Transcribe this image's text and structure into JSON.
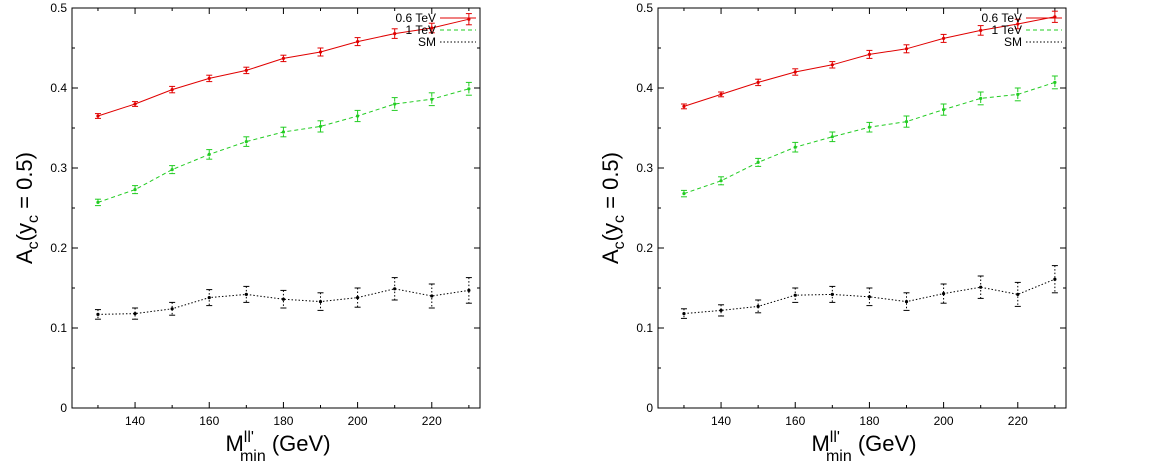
{
  "chart_data": [
    {
      "type": "line",
      "ylabel": "A_c(y_c = 0.5)",
      "ylabel_parts": {
        "a": "A",
        "sub1": "c",
        "mid": "(y",
        "sub2": "c",
        "tail": " = 0.5)"
      },
      "xlabel": "M^ll'_min (GeV)",
      "xlabel_parts": {
        "m": "M",
        "sup": "ll'",
        "sub": "min",
        "tail": " (GeV)"
      },
      "xlim": [
        123,
        233
      ],
      "ylim": [
        0,
        0.5
      ],
      "x_ticks": [
        140,
        160,
        180,
        200,
        220
      ],
      "y_ticks": [
        0,
        0.1,
        0.2,
        0.3,
        0.4,
        0.5
      ],
      "y_tick_labels": [
        "0",
        "0.1",
        "0.2",
        "0.3",
        "0.4",
        "0.5"
      ],
      "legend_position": "top-right",
      "x": [
        130,
        140,
        150,
        160,
        170,
        180,
        190,
        200,
        210,
        220,
        230
      ],
      "series": [
        {
          "name": "0.6 TeV",
          "color": "#e00000",
          "style": "solid",
          "values": [
            0.365,
            0.38,
            0.398,
            0.412,
            0.422,
            0.437,
            0.445,
            0.458,
            0.468,
            0.475,
            0.486
          ],
          "errors": [
            0.003,
            0.003,
            0.004,
            0.004,
            0.004,
            0.004,
            0.005,
            0.005,
            0.006,
            0.006,
            0.007
          ]
        },
        {
          "name": "1 TeV",
          "color": "#22cc22",
          "style": "dashed",
          "values": [
            0.257,
            0.273,
            0.298,
            0.317,
            0.333,
            0.345,
            0.352,
            0.365,
            0.38,
            0.386,
            0.399
          ],
          "errors": [
            0.004,
            0.005,
            0.005,
            0.006,
            0.006,
            0.006,
            0.007,
            0.007,
            0.008,
            0.008,
            0.008
          ]
        },
        {
          "name": "SM",
          "color": "#000000",
          "style": "dotted",
          "values": [
            0.117,
            0.118,
            0.124,
            0.138,
            0.142,
            0.136,
            0.133,
            0.138,
            0.149,
            0.14,
            0.147
          ],
          "errors": [
            0.006,
            0.007,
            0.008,
            0.01,
            0.01,
            0.011,
            0.011,
            0.012,
            0.014,
            0.015,
            0.016
          ]
        }
      ]
    },
    {
      "type": "line",
      "ylabel": "A_c(y_c = 0.5)",
      "ylabel_parts": {
        "a": "A",
        "sub1": "c",
        "mid": "(y",
        "sub2": "c",
        "tail": " = 0.5)"
      },
      "xlabel": "M^ll'_min (GeV)",
      "xlabel_parts": {
        "m": "M",
        "sup": "ll'",
        "sub": "min",
        "tail": " (GeV)"
      },
      "xlim": [
        123,
        233
      ],
      "ylim": [
        0,
        0.5
      ],
      "x_ticks": [
        140,
        160,
        180,
        200,
        220
      ],
      "y_ticks": [
        0,
        0.1,
        0.2,
        0.3,
        0.4,
        0.5
      ],
      "y_tick_labels": [
        "0",
        "0.1",
        "0.2",
        "0.3",
        "0.4",
        "0.5"
      ],
      "legend_position": "top-right",
      "x": [
        130,
        140,
        150,
        160,
        170,
        180,
        190,
        200,
        210,
        220,
        230
      ],
      "series": [
        {
          "name": "0.6 TeV",
          "color": "#e00000",
          "style": "solid",
          "values": [
            0.377,
            0.392,
            0.407,
            0.42,
            0.429,
            0.442,
            0.449,
            0.462,
            0.472,
            0.48,
            0.489
          ],
          "errors": [
            0.003,
            0.003,
            0.004,
            0.004,
            0.004,
            0.005,
            0.005,
            0.005,
            0.006,
            0.006,
            0.007
          ]
        },
        {
          "name": "1 TeV",
          "color": "#22cc22",
          "style": "dashed",
          "values": [
            0.268,
            0.284,
            0.307,
            0.326,
            0.339,
            0.351,
            0.358,
            0.373,
            0.387,
            0.392,
            0.407
          ],
          "errors": [
            0.004,
            0.005,
            0.005,
            0.006,
            0.006,
            0.006,
            0.007,
            0.007,
            0.008,
            0.008,
            0.008
          ]
        },
        {
          "name": "SM",
          "color": "#000000",
          "style": "dotted",
          "values": [
            0.118,
            0.122,
            0.127,
            0.141,
            0.142,
            0.139,
            0.133,
            0.143,
            0.151,
            0.142,
            0.161
          ],
          "errors": [
            0.006,
            0.007,
            0.008,
            0.009,
            0.01,
            0.011,
            0.011,
            0.012,
            0.014,
            0.015,
            0.017
          ]
        }
      ]
    }
  ]
}
